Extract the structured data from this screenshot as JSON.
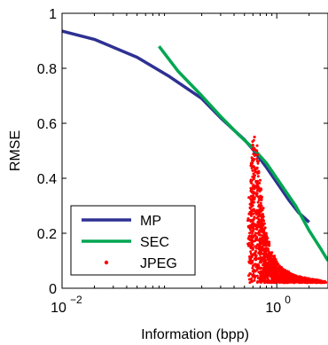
{
  "chart_data": {
    "type": "line",
    "xlabel": "Information (bpp)",
    "ylabel": "RMSE",
    "xscale": "log",
    "xlim": [
      0.01,
      3
    ],
    "ylim": [
      0,
      1
    ],
    "grid": false,
    "legend_position": "bottom-left",
    "x_ticks": [
      {
        "value": 0.01,
        "base": "10",
        "exp": "−2"
      },
      {
        "value": 1,
        "base": "10",
        "exp": "0"
      }
    ],
    "y_ticks": [
      {
        "value": 0,
        "label": "0"
      },
      {
        "value": 0.2,
        "label": "0.2"
      },
      {
        "value": 0.4,
        "label": "0.4"
      },
      {
        "value": 0.6,
        "label": "0.6"
      },
      {
        "value": 0.8,
        "label": "0.8"
      },
      {
        "value": 1,
        "label": "1"
      }
    ],
    "series": [
      {
        "name": "MP",
        "kind": "line",
        "color": "#2e3192",
        "x": [
          0.01,
          0.02,
          0.05,
          0.1,
          0.2,
          0.3,
          0.4,
          0.5,
          0.6,
          0.7,
          0.8,
          1.0,
          1.3,
          1.6,
          2.0
        ],
        "y": [
          0.935,
          0.905,
          0.84,
          0.77,
          0.69,
          0.62,
          0.575,
          0.54,
          0.505,
          0.47,
          0.44,
          0.385,
          0.32,
          0.275,
          0.24
        ]
      },
      {
        "name": "SEC",
        "kind": "line",
        "color": "#00a651",
        "x": [
          0.08,
          0.12,
          0.2,
          0.3,
          0.45,
          0.6,
          0.8,
          1.0,
          1.5,
          2.0,
          2.6,
          3.0
        ],
        "y": [
          0.88,
          0.79,
          0.7,
          0.625,
          0.555,
          0.51,
          0.455,
          0.4,
          0.3,
          0.21,
          0.14,
          0.1
        ]
      },
      {
        "name": "JPEG",
        "kind": "scatter",
        "color": "#ff0000",
        "x": [
          0.55,
          0.58,
          0.6,
          0.62,
          0.65,
          0.68,
          0.7,
          0.72,
          0.75,
          0.78,
          0.8,
          0.85,
          0.9,
          0.95,
          1.0,
          1.1,
          1.2,
          1.3,
          1.4,
          1.5,
          1.7,
          2.0,
          2.4,
          2.8
        ],
        "y": [
          0.33,
          0.45,
          0.52,
          0.55,
          0.5,
          0.42,
          0.36,
          0.3,
          0.26,
          0.22,
          0.19,
          0.16,
          0.13,
          0.11,
          0.09,
          0.075,
          0.065,
          0.055,
          0.05,
          0.045,
          0.04,
          0.035,
          0.03,
          0.025
        ]
      }
    ]
  }
}
